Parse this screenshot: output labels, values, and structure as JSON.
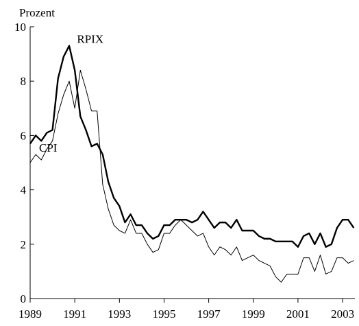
{
  "chart_data": {
    "type": "line",
    "y_label": "Prozent",
    "annotations": [
      {
        "text": "RPIX",
        "x": 1991.1,
        "y": 9.3
      },
      {
        "text": "CPI",
        "x": 1989.4,
        "y": 5.3
      }
    ],
    "x": [
      1989,
      1989.25,
      1989.5,
      1989.75,
      1990,
      1990.25,
      1990.5,
      1990.75,
      1991,
      1991.25,
      1991.5,
      1991.75,
      1992,
      1992.25,
      1992.5,
      1992.75,
      1993,
      1993.25,
      1993.5,
      1993.75,
      1994,
      1994.25,
      1994.5,
      1994.75,
      1995,
      1995.25,
      1995.5,
      1995.75,
      1996,
      1996.25,
      1996.5,
      1996.75,
      1997,
      1997.25,
      1997.5,
      1997.75,
      1998,
      1998.25,
      1998.5,
      1998.75,
      1999,
      1999.25,
      1999.5,
      1999.75,
      2000,
      2000.25,
      2000.5,
      2000.75,
      2001,
      2001.25,
      2001.5,
      2001.75,
      2002,
      2002.25,
      2002.5,
      2002.75,
      2003,
      2003.25,
      2003.5
    ],
    "series": [
      {
        "name": "RPIX",
        "color": "#000000",
        "width": 2.4,
        "values": [
          5.7,
          6.0,
          5.8,
          6.1,
          6.2,
          8.1,
          8.9,
          9.3,
          8.4,
          6.7,
          6.2,
          5.6,
          5.7,
          5.3,
          4.3,
          3.7,
          3.4,
          2.8,
          3.1,
          2.7,
          2.7,
          2.4,
          2.2,
          2.3,
          2.7,
          2.7,
          2.9,
          2.9,
          2.9,
          2.8,
          2.9,
          3.2,
          2.9,
          2.6,
          2.8,
          2.8,
          2.6,
          2.9,
          2.5,
          2.5,
          2.5,
          2.3,
          2.2,
          2.2,
          2.1,
          2.1,
          2.1,
          2.1,
          1.9,
          2.3,
          2.4,
          2.0,
          2.4,
          1.9,
          2.0,
          2.6,
          2.9,
          2.9,
          2.6
        ]
      },
      {
        "name": "CPI",
        "color": "#000000",
        "width": 1,
        "values": [
          5.0,
          5.3,
          5.1,
          5.5,
          5.8,
          6.8,
          7.5,
          8.0,
          7.0,
          8.4,
          7.7,
          6.9,
          6.9,
          4.2,
          3.3,
          2.7,
          2.5,
          2.4,
          2.9,
          2.4,
          2.4,
          2.0,
          1.7,
          1.8,
          2.4,
          2.4,
          2.7,
          2.9,
          2.7,
          2.5,
          2.3,
          2.4,
          1.9,
          1.6,
          1.9,
          1.8,
          1.6,
          1.9,
          1.4,
          1.5,
          1.6,
          1.4,
          1.3,
          1.2,
          0.8,
          0.6,
          0.9,
          0.9,
          0.9,
          1.5,
          1.5,
          1.0,
          1.6,
          0.9,
          1.0,
          1.5,
          1.5,
          1.3,
          1.4
        ]
      }
    ],
    "xlim": [
      1989,
      2003.55
    ],
    "xticks": [
      1989,
      1991,
      1993,
      1995,
      1997,
      1999,
      2001,
      2003
    ],
    "ylim": [
      0,
      10
    ],
    "yticks": [
      0,
      2,
      4,
      6,
      8,
      10
    ]
  }
}
